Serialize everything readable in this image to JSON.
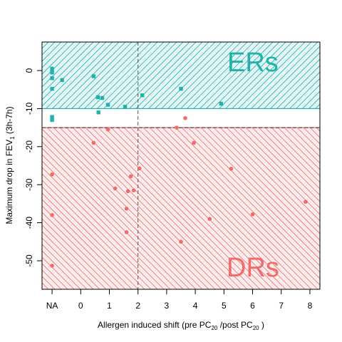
{
  "chart_data": {
    "type": "scatter",
    "title": "",
    "xlabel_parts": [
      "Allergen induced shift (pre PC",
      "20",
      " /post PC",
      "20",
      " )"
    ],
    "ylabel_parts": [
      "Maximum drop in FEV",
      "1",
      " (3h-7h)"
    ],
    "x_ticks": [
      {
        "value": -1,
        "label": "NA"
      },
      {
        "value": 0,
        "label": "0"
      },
      {
        "value": 1,
        "label": "1"
      },
      {
        "value": 2,
        "label": "2"
      },
      {
        "value": 3,
        "label": "3"
      },
      {
        "value": 4,
        "label": "4"
      },
      {
        "value": 5,
        "label": "5"
      },
      {
        "value": 6,
        "label": "6"
      },
      {
        "value": 7,
        "label": "7"
      },
      {
        "value": 8,
        "label": "8"
      }
    ],
    "y_ticks": [
      0,
      -10,
      -20,
      -30,
      -40,
      -50
    ],
    "xlim": [
      -1.35,
      8.35
    ],
    "ylim": [
      -57.5,
      7.5
    ],
    "thresholds": {
      "x": 2,
      "y": -15,
      "er_boundary_y": -10
    },
    "regions": [
      {
        "name": "ERs",
        "label": "ERs",
        "color": "#20b2aa",
        "y_from": -10,
        "y_to": 7.5
      },
      {
        "name": "DRs",
        "label": "DRs",
        "color": "#f26b6b",
        "y_from": -57.5,
        "y_to": -15
      }
    ],
    "series": [
      {
        "name": "ERs",
        "color": "#20b2aa",
        "marker": "square",
        "points": [
          [
            -1,
            0.5
          ],
          [
            -1,
            -0.5
          ],
          [
            -1,
            -2
          ],
          [
            -1,
            -4.8
          ],
          [
            -1,
            -12.2
          ],
          [
            -1,
            -13
          ],
          [
            -0.65,
            -2.5
          ],
          [
            0.45,
            -1.5
          ],
          [
            0.6,
            -7
          ],
          [
            0.75,
            -7.2
          ],
          [
            0.95,
            -9
          ],
          [
            0.62,
            -11
          ],
          [
            1.55,
            -9.5
          ],
          [
            2.15,
            -6.5
          ],
          [
            3.5,
            -4.8
          ],
          [
            4.9,
            -8.7
          ]
        ]
      },
      {
        "name": "DRs",
        "color": "#f26b6b",
        "marker": "circle",
        "points": [
          [
            0.95,
            -15.5
          ],
          [
            0.45,
            -19
          ],
          [
            -1,
            -27.3
          ],
          [
            -1,
            -38
          ],
          [
            -1,
            -51.3
          ],
          [
            1.2,
            -31
          ],
          [
            1.65,
            -31.7
          ],
          [
            1.85,
            -31.5
          ],
          [
            1.75,
            -27.8
          ],
          [
            2.05,
            -25.7
          ],
          [
            1.6,
            -36.3
          ],
          [
            1.6,
            -42.5
          ],
          [
            3.35,
            -15
          ],
          [
            3.65,
            -12.5
          ],
          [
            3.95,
            -19
          ],
          [
            3.5,
            -45
          ],
          [
            4.5,
            -39
          ],
          [
            5.25,
            -25.8
          ],
          [
            6,
            -37.8
          ],
          [
            7.85,
            -34.5
          ]
        ]
      }
    ]
  }
}
